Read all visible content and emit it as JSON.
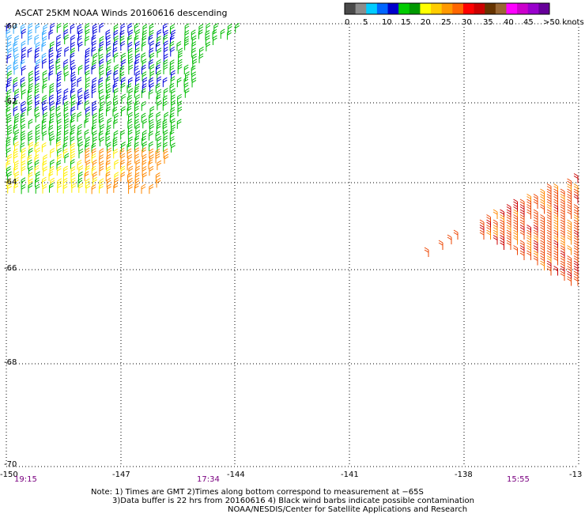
{
  "title": "ASCAT 25KM NOAA Winds 20160616 descending",
  "legend": {
    "labels": [
      "0",
      "5",
      "10",
      "15",
      "20",
      "25",
      "30",
      "35",
      "40",
      "45",
      ">50 knots"
    ],
    "colors": [
      "#4a4a4a",
      "#8c8c8c",
      "#00ccff",
      "#0066ff",
      "#0000cc",
      "#00cc00",
      "#009900",
      "#ffff00",
      "#ffcc00",
      "#ff9900",
      "#ff6600",
      "#ff0000",
      "#cc0000",
      "#663300",
      "#996633",
      "#ff00ff",
      "#cc00cc",
      "#9900cc",
      "#660099"
    ]
  },
  "lat_labels": [
    "-60",
    "-62",
    "-64",
    "-66",
    "-68",
    "-70"
  ],
  "lon_labels": [
    "-150",
    "-147",
    "-144",
    "-141",
    "-138",
    "-13"
  ],
  "times": [
    "19:15",
    "17:34",
    "15:55"
  ],
  "notes": [
    "Note: 1) Times are GMT 2)Times along bottom correspond to measurement at −65S",
    "3)Data buffer is 22 hrs from 20160616 4) Black wind barbs indicate possible contamination",
    "NOAA/NESDIS/Center for Satellite Applications and Research"
  ],
  "speed_bins": {
    "light_blue": "#33aaff",
    "blue": "#0000dd",
    "green": "#00bb00",
    "yellow": "#ffee00",
    "orange": "#ff8800",
    "red_orange": "#ee4400",
    "red": "#cc0000"
  }
}
